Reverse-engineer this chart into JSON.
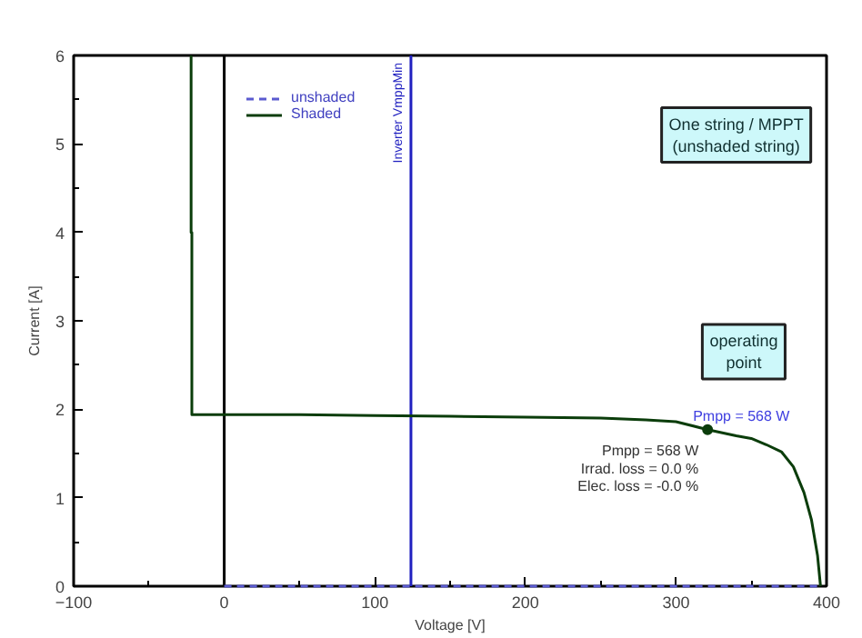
{
  "chart_data": {
    "type": "line",
    "xlabel": "Voltage [V]",
    "ylabel": "Current [A]",
    "xlim": [
      -100,
      400
    ],
    "xticks": [
      -100,
      0,
      100,
      200,
      300,
      400
    ],
    "ylim": [
      0,
      6
    ],
    "yticks": [
      0,
      1,
      2,
      3,
      4,
      5,
      6
    ],
    "grid": false,
    "legend": "top left",
    "series": [
      {
        "name": "unshaded",
        "color": "#5a5ad0",
        "line_style": "dashed",
        "x": [
          0,
          100,
          200,
          300,
          396
        ],
        "values": [
          0,
          0,
          0,
          0,
          0
        ]
      },
      {
        "name": "Shaded",
        "color": "#0b3d0b",
        "line_style": "solid",
        "x": [
          -22,
          -22,
          -21.5,
          -21.5,
          50,
          100,
          150,
          200,
          250,
          280,
          300,
          321,
          340,
          350,
          360,
          370,
          378,
          385,
          390,
          394,
          396
        ],
        "values": [
          6,
          4,
          4,
          1.94,
          1.94,
          1.93,
          1.92,
          1.91,
          1.9,
          1.88,
          1.86,
          1.77,
          1.7,
          1.67,
          1.6,
          1.52,
          1.35,
          1.06,
          0.75,
          0.35,
          0
        ]
      }
    ],
    "ref_lines": [
      {
        "axis": "x",
        "value": 0,
        "color": "#000000"
      },
      {
        "axis": "x",
        "value": 124,
        "label": "Inverter VmppMin",
        "color": "#2020c0"
      }
    ],
    "annotations": [
      "One string / MPPT\n(unshaded string)",
      "operating\npoint",
      {
        "text": "Pmpp = 568 W",
        "x": 321,
        "y": 1.77
      },
      "Pmpp = 568 W",
      "Irrad. loss = 0.0 %",
      "Elec. loss = -0.0 %"
    ]
  }
}
